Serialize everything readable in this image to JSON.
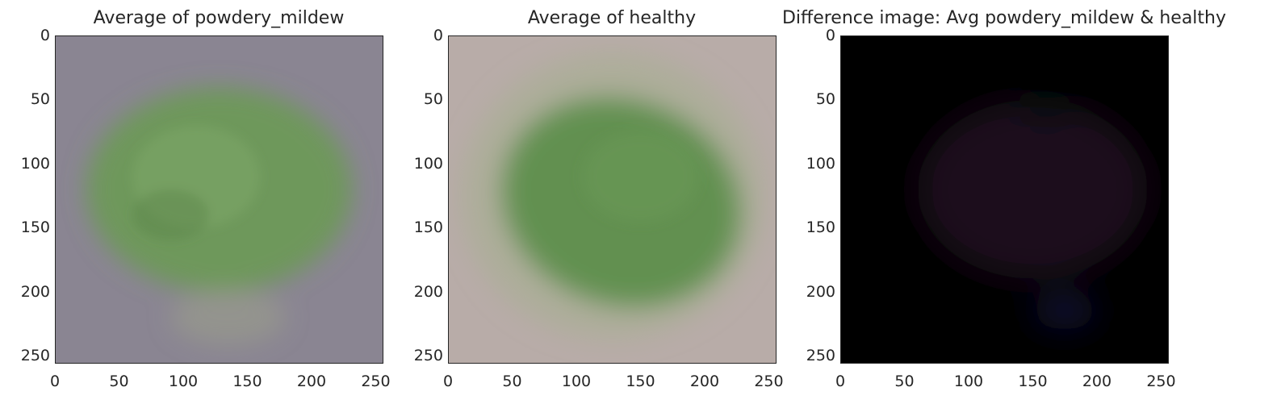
{
  "chart_data": [
    {
      "type": "image",
      "title": "Average of powdery_mildew",
      "xticks": [
        "0",
        "50",
        "100",
        "150",
        "200",
        "250"
      ],
      "yticks": [
        "0",
        "50",
        "100",
        "150",
        "200",
        "250"
      ],
      "xlim": [
        0,
        256
      ],
      "ylim": [
        256,
        0
      ],
      "background_color": "#8a8592",
      "leaf_color": "#6c9a55"
    },
    {
      "type": "image",
      "title": "Average of healthy",
      "xticks": [
        "0",
        "50",
        "100",
        "150",
        "200",
        "250"
      ],
      "yticks": [
        "0",
        "50",
        "100",
        "150",
        "200",
        "250"
      ],
      "xlim": [
        0,
        256
      ],
      "ylim": [
        256,
        0
      ],
      "background_color": "#b8aca8",
      "leaf_color": "#5f8e4c"
    },
    {
      "type": "image",
      "title": "Difference image: Avg powdery_mildew & healthy",
      "xticks": [
        "0",
        "50",
        "100",
        "150",
        "200",
        "250"
      ],
      "yticks": [
        "0",
        "50",
        "100",
        "150",
        "200",
        "250"
      ],
      "xlim": [
        0,
        256
      ],
      "ylim": [
        256,
        0
      ],
      "background_color": "#000000",
      "leaf_color": "#1c0f1f"
    }
  ]
}
